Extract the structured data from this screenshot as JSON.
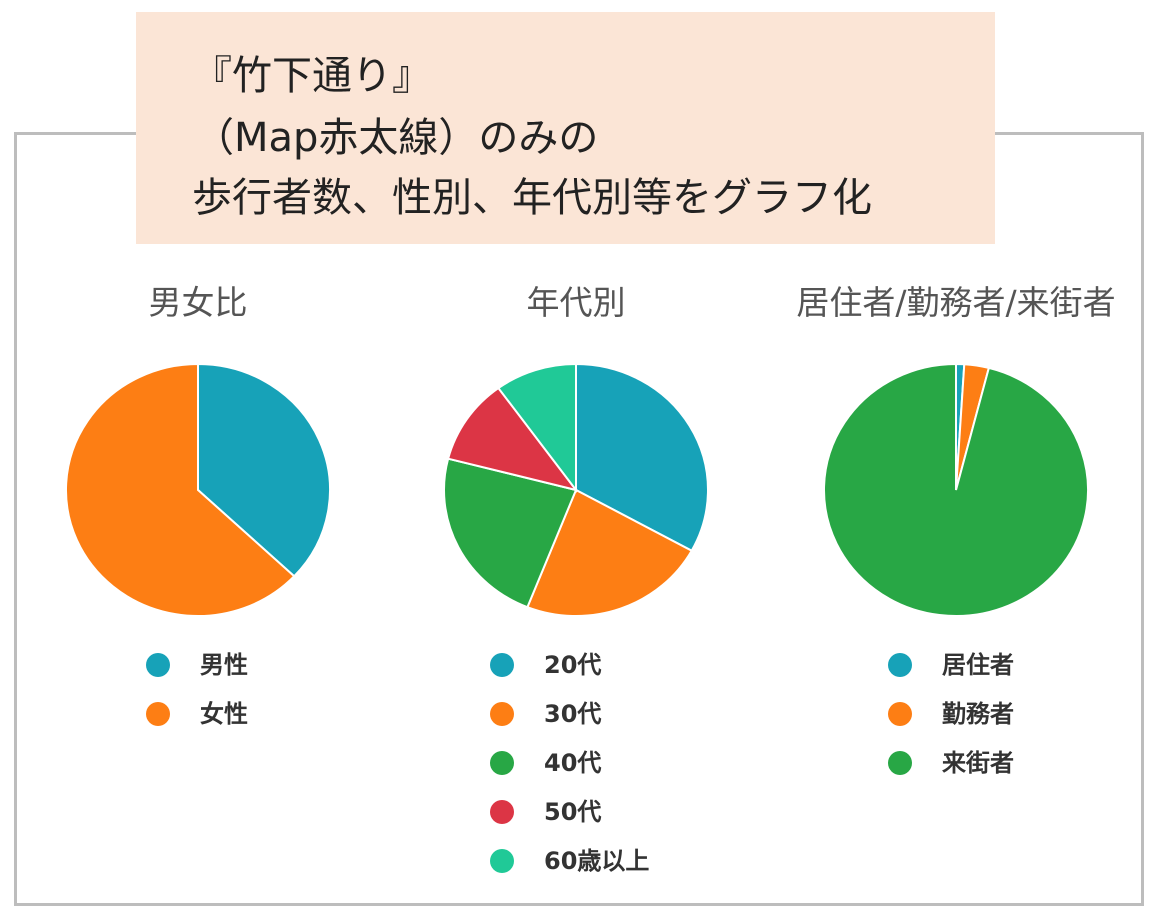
{
  "banner": {
    "line1": "『竹下通り』",
    "line2": "（Map赤太線）のみの",
    "line3": "歩行者数、性別、年代別等をグラフ化"
  },
  "colors": {
    "blue": "#17a2b8",
    "orange": "#fd7e14",
    "green": "#28a745",
    "red": "#dc3545",
    "teal": "#20c997",
    "banner_bg": "#fbe5d6"
  },
  "chart_data": [
    {
      "type": "pie",
      "title": "男女比",
      "categories": [
        "男性",
        "女性"
      ],
      "values": [
        37,
        63
      ],
      "colors": [
        "#17a2b8",
        "#fd7e14"
      ]
    },
    {
      "type": "pie",
      "title": "年代別",
      "categories": [
        "20代",
        "30代",
        "40代",
        "50代",
        "60歳以上"
      ],
      "values": [
        33,
        23,
        23,
        11,
        10
      ],
      "colors": [
        "#17a2b8",
        "#fd7e14",
        "#28a745",
        "#dc3545",
        "#20c997"
      ]
    },
    {
      "type": "pie",
      "title": "居住者/勤務者/来街者",
      "categories": [
        "居住者",
        "勤務者",
        "来街者"
      ],
      "values": [
        1,
        3,
        96
      ],
      "colors": [
        "#17a2b8",
        "#fd7e14",
        "#28a745"
      ]
    }
  ]
}
